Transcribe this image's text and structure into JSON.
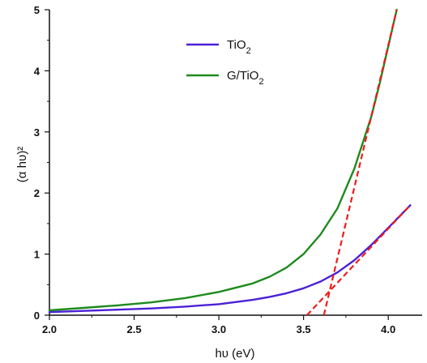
{
  "chart_data": {
    "type": "line",
    "xlabel": "hυ (eV)",
    "ylabel": "(α hυ)²",
    "xlim": [
      2.0,
      4.2
    ],
    "ylim": [
      0,
      5
    ],
    "x_ticks": [
      2.0,
      2.5,
      3.0,
      3.5,
      4.0
    ],
    "x_tick_labels": [
      "2.0",
      "2.5",
      "3.0",
      "3.5",
      "4.0"
    ],
    "y_ticks": [
      0,
      1,
      2,
      3,
      4,
      5
    ],
    "y_tick_labels": [
      "0",
      "1",
      "2",
      "3",
      "4",
      "5"
    ],
    "grid": false,
    "legend_position": "top-center",
    "series": [
      {
        "name": "TiO2",
        "label_main": "TiO",
        "label_sub": "2",
        "label_after": "",
        "color": "#4b20d8",
        "x": [
          2.0,
          2.2,
          2.4,
          2.6,
          2.8,
          3.0,
          3.2,
          3.3,
          3.4,
          3.5,
          3.6,
          3.7,
          3.8,
          3.9,
          4.0,
          4.13
        ],
        "y": [
          0.05,
          0.07,
          0.09,
          0.11,
          0.14,
          0.18,
          0.25,
          0.3,
          0.36,
          0.44,
          0.55,
          0.7,
          0.9,
          1.15,
          1.43,
          1.8
        ]
      },
      {
        "name": "G/TiO2",
        "label_main": "G/TiO",
        "label_sub": "2",
        "label_after": "",
        "color": "#1e8a1e",
        "x": [
          2.0,
          2.2,
          2.4,
          2.6,
          2.8,
          3.0,
          3.2,
          3.3,
          3.4,
          3.5,
          3.6,
          3.7,
          3.8,
          3.9,
          3.95,
          4.0,
          4.05
        ],
        "y": [
          0.08,
          0.12,
          0.16,
          0.21,
          0.28,
          0.38,
          0.52,
          0.63,
          0.78,
          1.0,
          1.32,
          1.75,
          2.4,
          3.25,
          3.8,
          4.4,
          5.0
        ]
      }
    ],
    "tangents": [
      {
        "color": "#ee1c1c",
        "x": [
          3.52,
          4.13
        ],
        "y": [
          0,
          1.8
        ]
      },
      {
        "color": "#ee1c1c",
        "x": [
          3.62,
          4.05
        ],
        "y": [
          0,
          5.0
        ]
      }
    ]
  }
}
